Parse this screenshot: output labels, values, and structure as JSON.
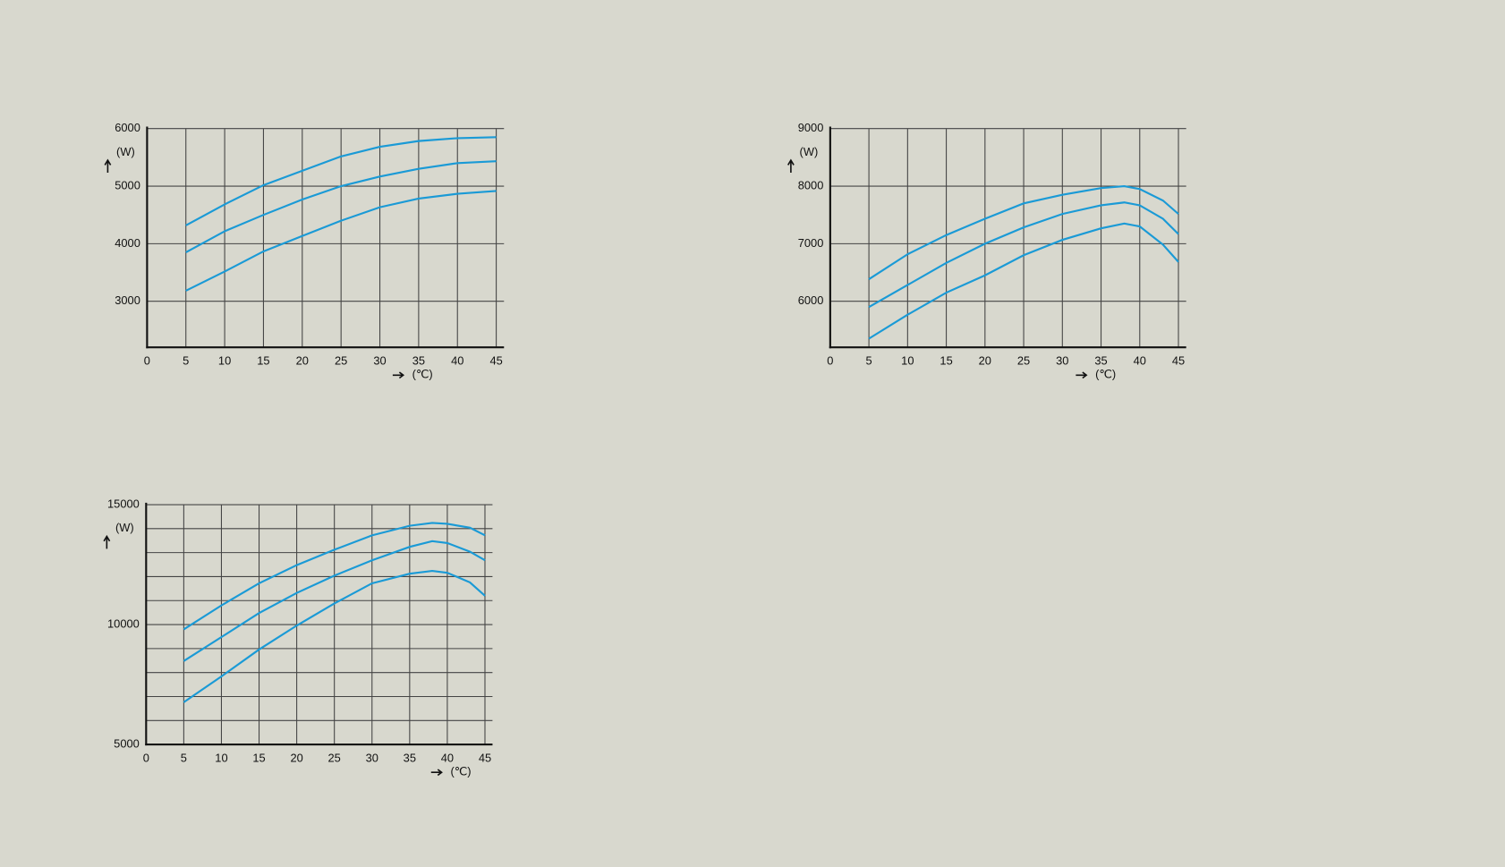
{
  "chart_data": [
    {
      "type": "line",
      "ylabel": "(W)",
      "xlabel": "(℃)",
      "x": [
        5,
        10,
        15,
        20,
        25,
        30,
        35,
        40,
        45
      ],
      "xlim": [
        0,
        46
      ],
      "xticks": [
        0,
        5,
        10,
        15,
        20,
        25,
        30,
        35,
        40,
        45
      ],
      "ylim": [
        2200,
        6000
      ],
      "yticks": [
        3000,
        4000,
        5000,
        6000
      ],
      "grid": true,
      "series": [
        {
          "color": "#1a9ad6",
          "values": [
            4317,
            4683,
            5017,
            5267,
            5517,
            5683,
            5783,
            5833,
            5850
          ]
        },
        {
          "color": "#1a9ad6",
          "values": [
            3850,
            4217,
            4500,
            4767,
            5000,
            5167,
            5300,
            5400,
            5433
          ]
        },
        {
          "color": "#1a9ad6",
          "values": [
            3183,
            3517,
            3867,
            4133,
            4400,
            4633,
            4783,
            4867,
            4917
          ]
        }
      ]
    },
    {
      "type": "line",
      "ylabel": "(W)",
      "xlabel": "(℃)",
      "x": [
        5,
        10,
        15,
        20,
        25,
        30,
        35,
        38,
        40,
        43,
        45
      ],
      "xlim": [
        0,
        46
      ],
      "xticks": [
        0,
        5,
        10,
        15,
        20,
        25,
        30,
        35,
        40,
        45
      ],
      "ylim": [
        5200,
        9000
      ],
      "yticks": [
        6000,
        7000,
        8000,
        9000
      ],
      "grid": true,
      "series": [
        {
          "color": "#1a9ad6",
          "values": [
            6383,
            6817,
            7150,
            7433,
            7700,
            7850,
            7967,
            8000,
            7950,
            7750,
            7517
          ]
        },
        {
          "color": "#1a9ad6",
          "values": [
            5900,
            6283,
            6667,
            7000,
            7283,
            7517,
            7667,
            7717,
            7667,
            7433,
            7167
          ]
        },
        {
          "color": "#1a9ad6",
          "values": [
            5350,
            5767,
            6150,
            6450,
            6800,
            7067,
            7267,
            7350,
            7300,
            6983,
            6683
          ]
        }
      ]
    },
    {
      "type": "line",
      "ylabel": "(W)",
      "xlabel": "(℃)",
      "x": [
        5,
        10,
        15,
        20,
        25,
        30,
        35,
        38,
        40,
        43,
        45
      ],
      "xlim": [
        0,
        46
      ],
      "xticks": [
        0,
        5,
        10,
        15,
        20,
        25,
        30,
        35,
        40,
        45
      ],
      "ylim": [
        5000,
        15000
      ],
      "yticks": [
        5000,
        10000,
        15000
      ],
      "minor_yticks": [
        6000,
        7000,
        8000,
        9000,
        11000,
        12000,
        13000,
        14000
      ],
      "grid": true,
      "series": [
        {
          "color": "#1a9ad6",
          "values": [
            9800,
            10800,
            11720,
            12480,
            13120,
            13720,
            14120,
            14240,
            14200,
            14040,
            13720
          ]
        },
        {
          "color": "#1a9ad6",
          "values": [
            8480,
            9480,
            10480,
            11320,
            12040,
            12680,
            13240,
            13480,
            13400,
            13040,
            12680
          ]
        },
        {
          "color": "#1a9ad6",
          "values": [
            6760,
            7840,
            8960,
            9960,
            10880,
            11720,
            12120,
            12240,
            12160,
            11760,
            11200
          ]
        }
      ]
    }
  ]
}
